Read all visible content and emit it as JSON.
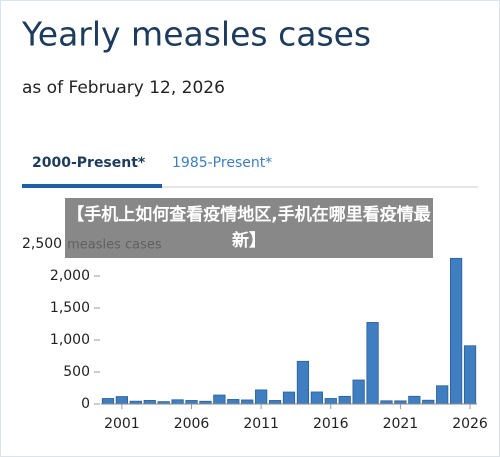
{
  "chart_data": {
    "type": "bar",
    "title": "Yearly measles cases",
    "subtitle": "as of February 12, 2026",
    "tabs": [
      "2000-Present*",
      "1985-Present*"
    ],
    "y_label": "measles cases",
    "x": [
      2000,
      2001,
      2002,
      2003,
      2004,
      2005,
      2006,
      2007,
      2008,
      2009,
      2010,
      2011,
      2012,
      2013,
      2014,
      2015,
      2016,
      2017,
      2018,
      2019,
      2020,
      2021,
      2022,
      2023,
      2024,
      2025,
      2026
    ],
    "values": [
      86,
      116,
      44,
      56,
      37,
      66,
      55,
      43,
      140,
      71,
      63,
      220,
      55,
      187,
      667,
      188,
      86,
      120,
      375,
      1274,
      50,
      49,
      121,
      59,
      285,
      2276,
      910
    ],
    "color": "#3f7fc1",
    "xlim": [
      1999.5,
      2026.5
    ],
    "xticks": [
      2001,
      2006,
      2011,
      2016,
      2021,
      2026
    ],
    "ylim": [
      0,
      2500
    ],
    "yticks": [
      0,
      500,
      {
        "value": 1000,
        "label": "1,000"
      },
      {
        "value": 1500,
        "label": "1,500"
      },
      {
        "value": 2000,
        "label": "2,000"
      },
      {
        "value": 2500,
        "label": "2,500"
      }
    ]
  },
  "overlay": {
    "text": "【手机上如何查看疫情地区,手机在哪里看疫情最新】"
  }
}
